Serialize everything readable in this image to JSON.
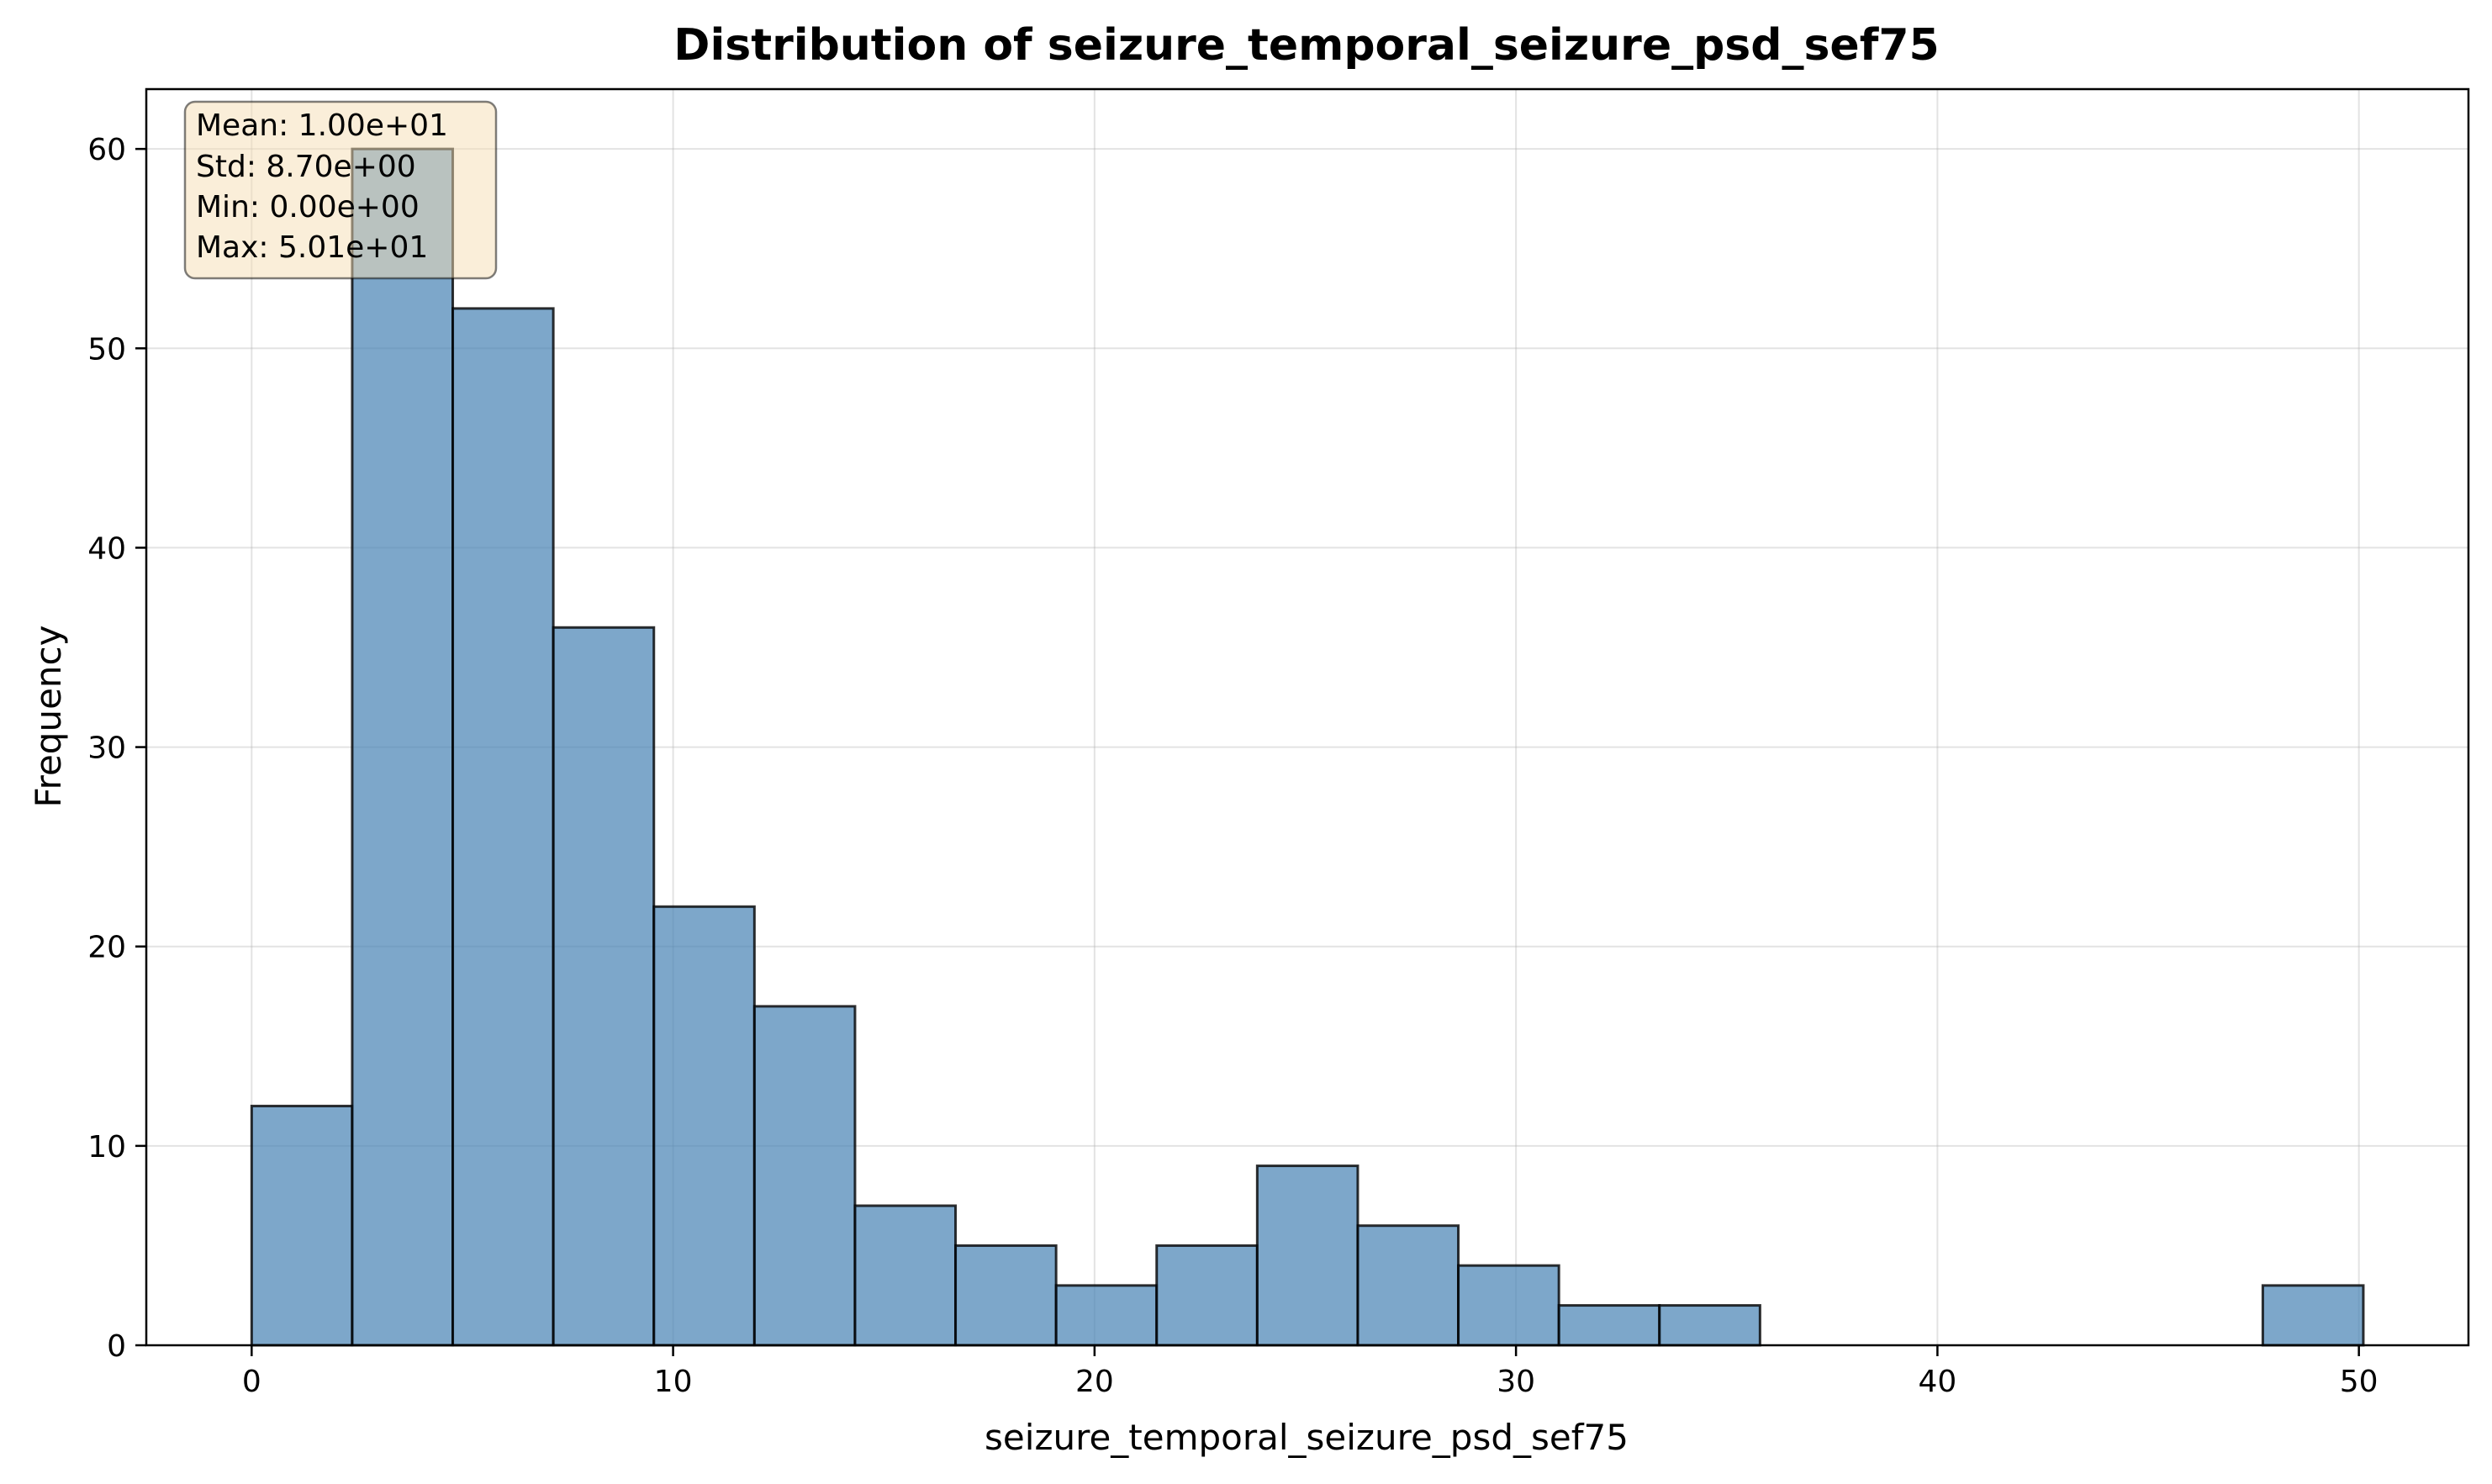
{
  "chart_data": {
    "type": "bar",
    "title": "Distribution of seizure_temporal_seizure_psd_sef75",
    "xlabel": "seizure_temporal_seizure_psd_sef75",
    "ylabel": "Frequency",
    "xlim": [
      -2.5,
      52.6
    ],
    "ylim": [
      0,
      63
    ],
    "x_ticks": [
      0,
      10,
      20,
      30,
      40,
      50
    ],
    "y_ticks": [
      0,
      10,
      20,
      30,
      40,
      50,
      60
    ],
    "bin_start": 0,
    "bin_width": 2.386,
    "values": [
      12,
      60,
      52,
      36,
      22,
      17,
      7,
      5,
      3,
      5,
      9,
      6,
      4,
      2,
      2,
      0,
      0,
      0,
      0,
      0,
      3
    ],
    "grid": true,
    "bar_color": "#4682b4",
    "stats_box": {
      "placement": "top-left",
      "background": "#f5deb3",
      "lines": [
        "Mean: 1.00e+01",
        "Std: 8.70e+00",
        "Min: 0.00e+00",
        "Max: 5.01e+01"
      ]
    }
  }
}
